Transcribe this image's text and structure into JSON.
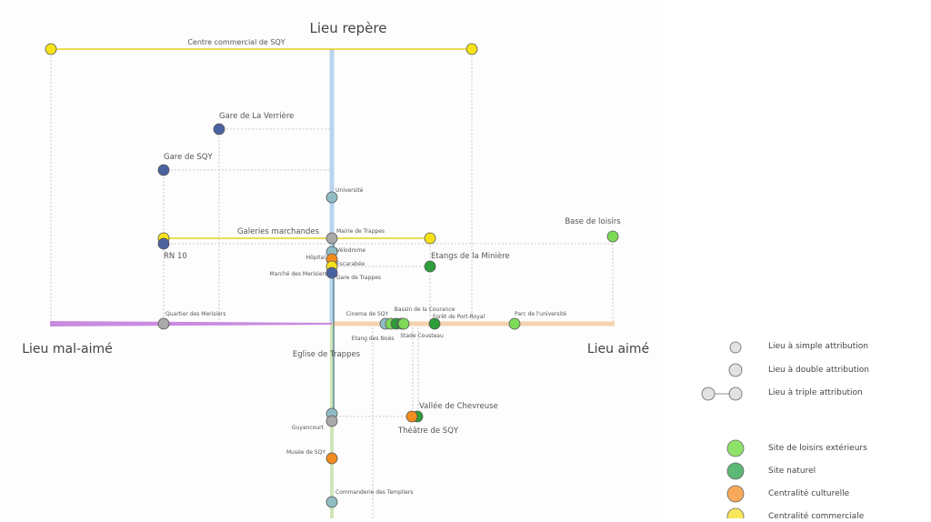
{
  "axes": {
    "top": "Lieu repère",
    "left": "Lieu mal-aimé",
    "right": "Lieu aimé",
    "colors": {
      "repere": "#b8d4ee",
      "mal_aime": "#c98be0",
      "aime": "#f5d3b0",
      "below": "#cfe6b8"
    }
  },
  "categories": {
    "loisirs": "#7ed957",
    "naturel": "#2e9e3a",
    "culturel": "#f28c1e",
    "commercial": "#f7e21a",
    "transport": "#4a63a0",
    "equipement": "#90bcc4",
    "neutre": "#a9a9a9"
  },
  "places": [
    {
      "label": "Centre commercial de SQY",
      "category": "commercial"
    },
    {
      "label": "Gare de La Verrière",
      "category": "transport"
    },
    {
      "label": "Gare de SQY",
      "category": "transport"
    },
    {
      "label": "Université",
      "category": "equipement"
    },
    {
      "label": "Galeries marchandes",
      "category": "commercial"
    },
    {
      "label": "RN 10",
      "category": "transport"
    },
    {
      "label": "Mairie de Trappes",
      "category": "neutre"
    },
    {
      "label": "Base de loisirs",
      "category": "loisirs"
    },
    {
      "label": "Etangs de la Minière",
      "category": "naturel"
    },
    {
      "label": "Vélodrome",
      "category": "equipement"
    },
    {
      "label": "Hôpital",
      "category": "culturel"
    },
    {
      "label": "Escarabée",
      "category": "commercial"
    },
    {
      "label": "Gare de Trappes",
      "category": "transport"
    },
    {
      "label": "Marché des Merisiers",
      "category": "transport"
    },
    {
      "label": "Quartier des Merisiers",
      "category": "neutre"
    },
    {
      "label": "Cinema de SQY",
      "category": "equipement"
    },
    {
      "label": "Etang des Noës",
      "category": "loisirs"
    },
    {
      "label": "Bassin de la Courance",
      "category": "naturel"
    },
    {
      "label": "Stade Cousteau",
      "category": "loisirs"
    },
    {
      "label": "Forêt de Port-Royal",
      "category": "naturel"
    },
    {
      "label": "Parc de l'université",
      "category": "loisirs"
    },
    {
      "label": "Eglise de Trappes",
      "category": "equipement"
    },
    {
      "label": "Guyancourt",
      "category": "neutre"
    },
    {
      "label": "Vallée de Chevreuse",
      "category": "naturel"
    },
    {
      "label": "Théâtre de SQY",
      "category": "culturel"
    },
    {
      "label": "Musée de SQY",
      "category": "culturel"
    },
    {
      "label": "Commanderie des Templiers",
      "category": "equipement"
    }
  ],
  "legend": {
    "attribution": [
      {
        "label": "Lieu à simple attribution"
      },
      {
        "label": "Lieu à double attribution"
      },
      {
        "label": "Lieu à triple attribution"
      }
    ],
    "types": [
      {
        "label": "Site de loisirs extérieurs",
        "color": "#8ee26a"
      },
      {
        "label": "Site naturel",
        "color": "#5cb874"
      },
      {
        "label": "Centralité culturelle",
        "color": "#f8a95a"
      },
      {
        "label": "Centralité commerciale",
        "color": "#f9e65a"
      }
    ]
  }
}
